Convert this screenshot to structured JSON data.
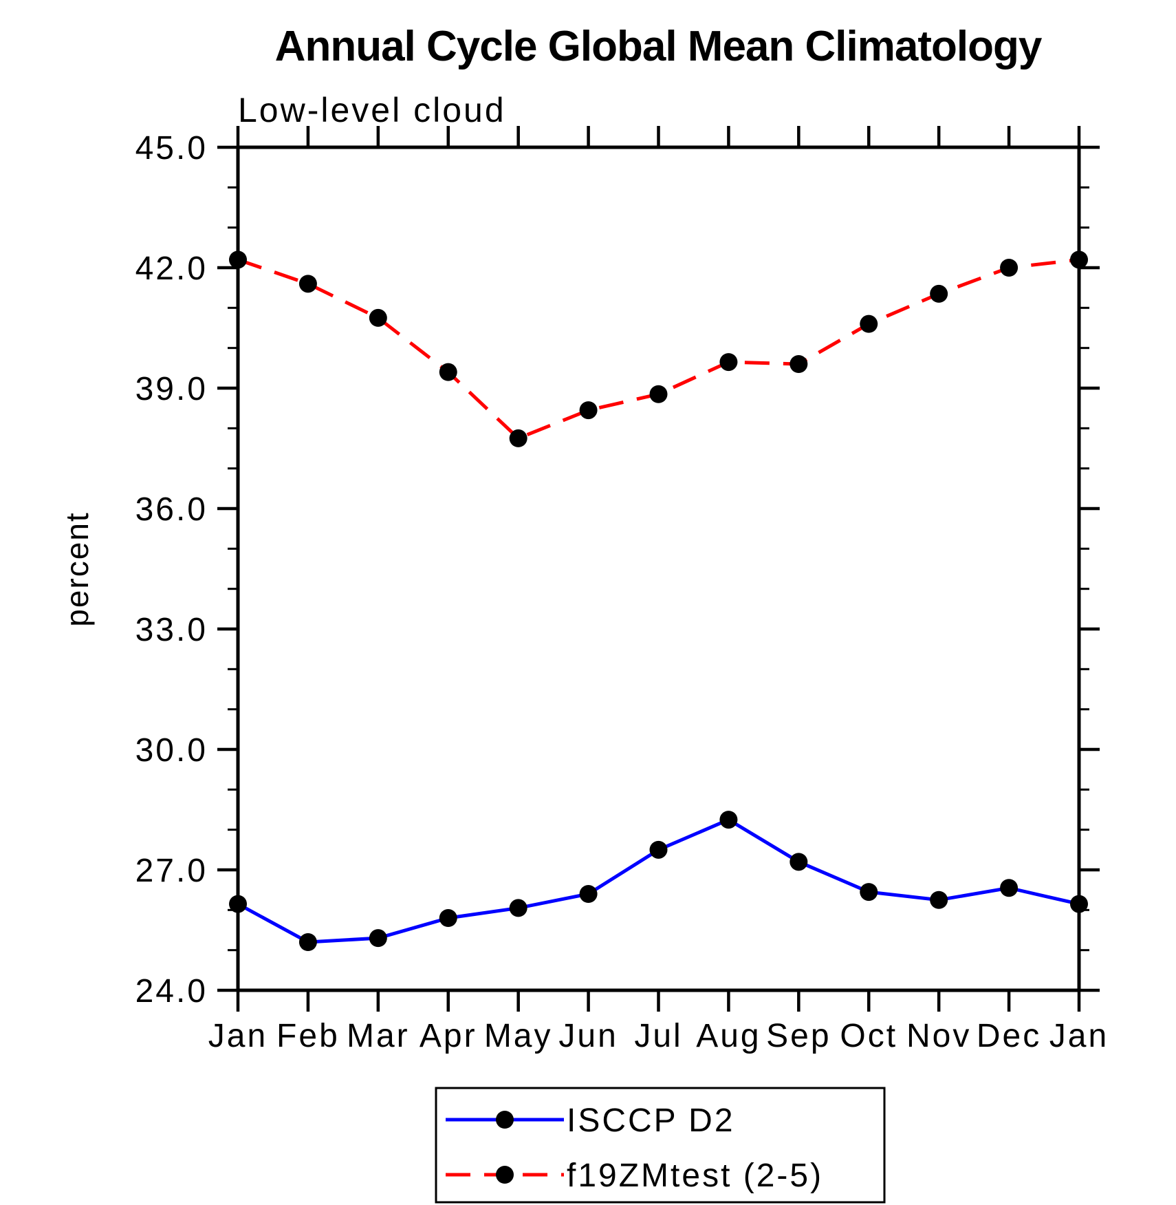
{
  "chart_data": {
    "type": "line",
    "title": "Annual Cycle Global Mean Climatology",
    "subtitle": "Low-level cloud",
    "xlabel": "",
    "ylabel": "percent",
    "categories": [
      "Jan",
      "Feb",
      "Mar",
      "Apr",
      "May",
      "Jun",
      "Jul",
      "Aug",
      "Sep",
      "Oct",
      "Nov",
      "Dec",
      "Jan"
    ],
    "series": [
      {
        "name": "ISCCP D2",
        "color": "#0000FF",
        "line_style": "solid",
        "marker": "filled-circle",
        "marker_color": "#000000",
        "values": [
          26.15,
          25.2,
          25.3,
          25.8,
          26.05,
          26.4,
          27.5,
          28.25,
          27.2,
          26.45,
          26.25,
          26.55,
          26.15
        ]
      },
      {
        "name": "f19ZMtest (2-5)",
        "color": "#FF0000",
        "line_style": "dashed",
        "marker": "filled-circle",
        "marker_color": "#000000",
        "values": [
          42.2,
          41.6,
          40.75,
          39.4,
          37.75,
          38.45,
          38.85,
          39.65,
          39.6,
          40.6,
          41.35,
          42.0,
          42.2
        ]
      }
    ],
    "ylim": [
      24.0,
      45.0
    ],
    "ytick_major_values": [
      24.0,
      27.0,
      30.0,
      33.0,
      36.0,
      39.0,
      42.0,
      45.0
    ],
    "ytick_labels": [
      "24.0",
      "27.0",
      "30.0",
      "33.0",
      "36.0",
      "39.0",
      "42.0",
      "45.0"
    ],
    "ytick_minor_step": 1.0,
    "grid": false,
    "axis_color": "#000000",
    "background_color": "#FFFFFF",
    "legend_position": "bottom-center",
    "legend_entries": [
      "ISCCP D2",
      "f19ZMtest (2-5)"
    ]
  }
}
